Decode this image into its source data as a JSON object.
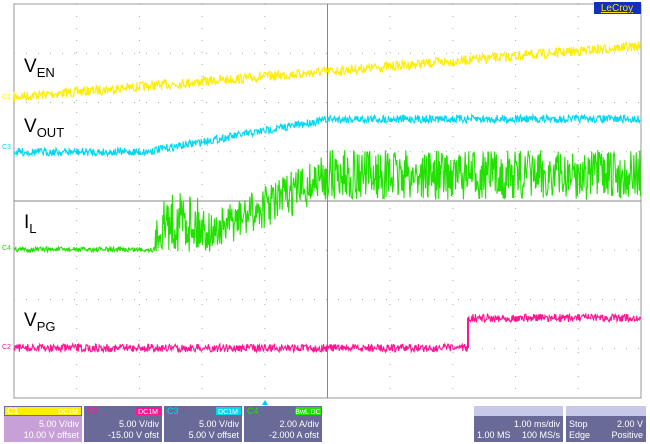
{
  "logo": "LeCroy",
  "trace_labels": [
    {
      "main": "V",
      "sub": "EN"
    },
    {
      "main": "V",
      "sub": "OUT"
    },
    {
      "main": "I",
      "sub": "L"
    },
    {
      "main": "V",
      "sub": "PG"
    }
  ],
  "channel_markers": [
    "C1",
    "C3",
    "C4",
    "C2"
  ],
  "channel_panels": [
    {
      "channel": "C1",
      "coupling": "DC1M",
      "lines": [
        "5.00 V/div",
        "10.00 V offset"
      ]
    },
    {
      "channel": "C2",
      "coupling": "DC1M",
      "lines": [
        "5.00 V/div",
        "-15.00 V ofst"
      ]
    },
    {
      "channel": "C3",
      "coupling": "DC1M",
      "lines": [
        "5.00 V/div",
        "5.00 V offset"
      ]
    },
    {
      "channel": "C4",
      "coupling": "BwL DC",
      "lines": [
        "2.00 A/div",
        "-2.000 A ofst"
      ]
    }
  ],
  "timebase": {
    "per_div": "1.00 ms/div",
    "samples": "1.00 MS",
    "rate": "100 MS/s"
  },
  "trigger": {
    "mode": "Stop",
    "level": "2.00 V",
    "type": "Edge",
    "slope": "Positive"
  }
}
